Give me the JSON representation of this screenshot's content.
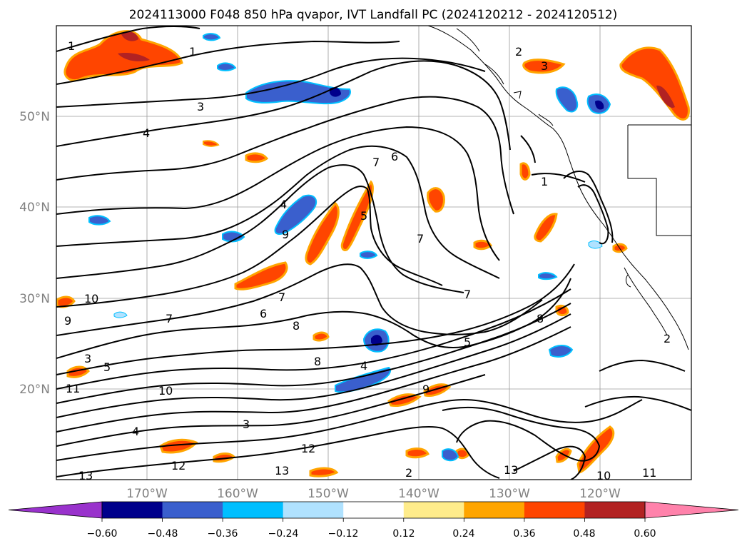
{
  "title": "2024113000 F048 850 hPa qvapor, IVT Landfall PC (2024120212 - 2024120512)",
  "lat_labels": [
    "50°N",
    "40°N",
    "30°N",
    "20°N"
  ],
  "lon_labels": [
    "170°W",
    "160°W",
    "150°W",
    "140°W",
    "130°W",
    "120°W"
  ],
  "colorbar": {
    "colors": [
      "#9932cc",
      "#00008b",
      "#3a5fcd",
      "#00bfff",
      "#b0e2ff",
      "#ffffff",
      "#ffec8b",
      "#ffa500",
      "#ff4500",
      "#b22222",
      "#ff82ab"
    ],
    "labels": [
      "−0.60",
      "−0.48",
      "−0.36",
      "−0.24",
      "−0.12",
      "0.12",
      "0.24",
      "0.36",
      "0.48",
      "0.60"
    ]
  },
  "contour_labels": [
    {
      "t": "1"
    },
    {
      "t": "1"
    },
    {
      "t": "3"
    },
    {
      "t": "4"
    },
    {
      "t": "2"
    },
    {
      "t": "3"
    },
    {
      "t": "1"
    },
    {
      "t": "7"
    },
    {
      "t": "6"
    },
    {
      "t": "5"
    },
    {
      "t": "7"
    },
    {
      "t": "4"
    },
    {
      "t": "9"
    },
    {
      "t": "10"
    },
    {
      "t": "9"
    },
    {
      "t": "6"
    },
    {
      "t": "7"
    },
    {
      "t": "7"
    },
    {
      "t": "8"
    },
    {
      "t": "8"
    },
    {
      "t": "7"
    },
    {
      "t": "8"
    },
    {
      "t": "5"
    },
    {
      "t": "4"
    },
    {
      "t": "9"
    },
    {
      "t": "3"
    },
    {
      "t": "2"
    },
    {
      "t": "3"
    },
    {
      "t": "5"
    },
    {
      "t": "11"
    },
    {
      "t": "10"
    },
    {
      "t": "13"
    },
    {
      "t": "12"
    },
    {
      "t": "12"
    },
    {
      "t": "13"
    },
    {
      "t": "13"
    },
    {
      "t": "10"
    },
    {
      "t": "11"
    },
    {
      "t": "2"
    },
    {
      "t": "4"
    }
  ]
}
